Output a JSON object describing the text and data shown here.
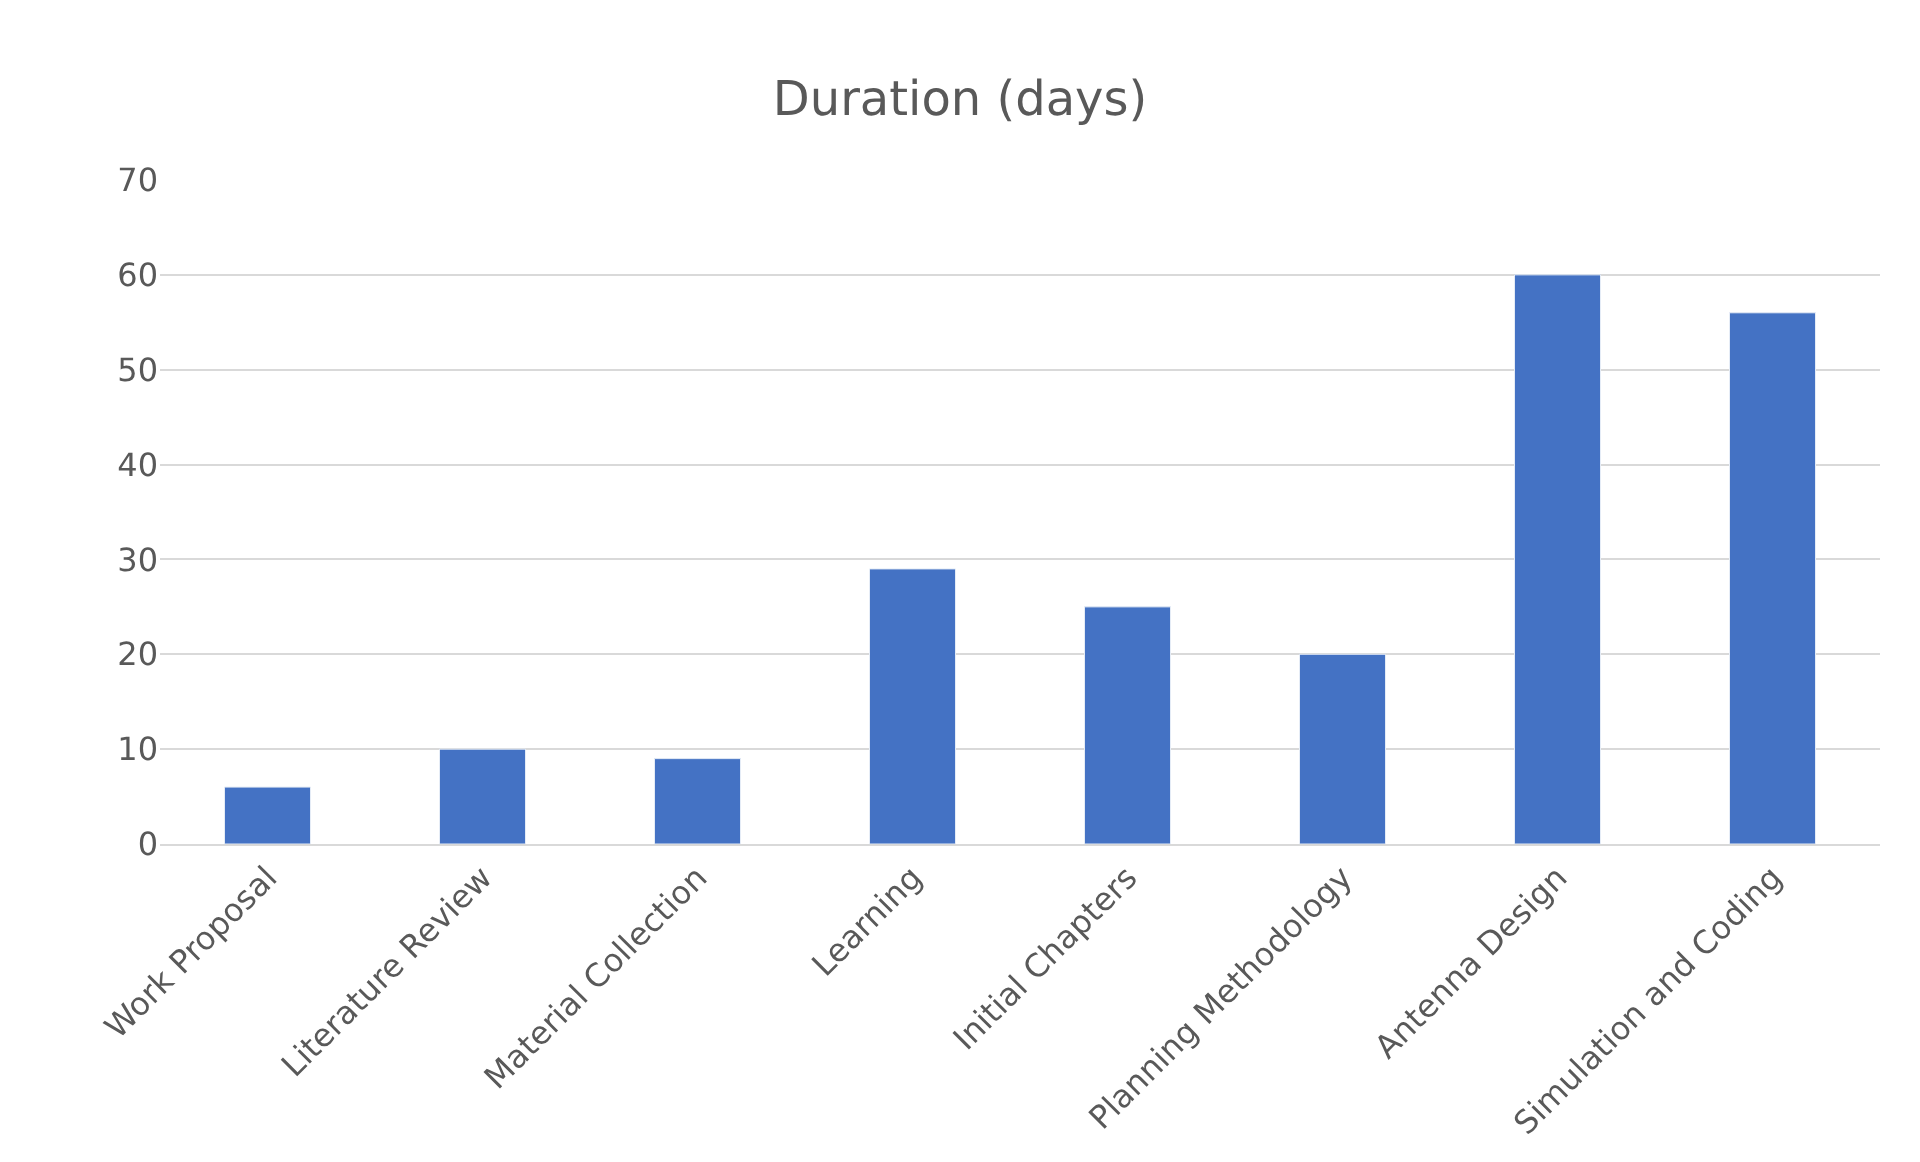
{
  "chart_data": {
    "type": "bar",
    "title": "Duration (days)",
    "categories": [
      "Work Proposal",
      "Literature Review",
      "Material Collection",
      "Learning",
      "Initial Chapters",
      "Planning Methodology",
      "Antenna Design",
      "Simulation and Coding"
    ],
    "values": [
      6,
      10,
      9,
      29,
      25,
      20,
      60,
      56
    ],
    "color": "#4472c4",
    "ylim": [
      0,
      70
    ],
    "yticks": [
      0,
      10,
      20,
      30,
      40,
      50,
      60,
      70
    ],
    "grid": "y"
  }
}
